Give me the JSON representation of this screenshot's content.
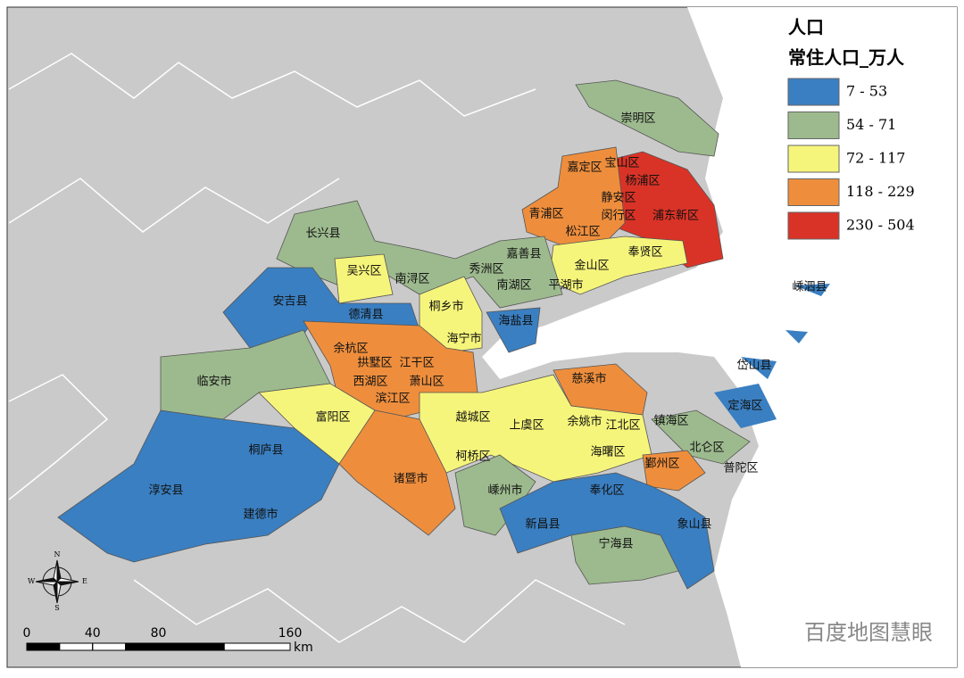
{
  "legend": {
    "title": "人口",
    "subtitle": "常住人口_万人",
    "classes": [
      {
        "label": "7 - 53",
        "color": "#3a7fc1"
      },
      {
        "label": "54 - 71",
        "color": "#9dba8e"
      },
      {
        "label": "72 - 117",
        "color": "#f6f57b"
      },
      {
        "label": "118 - 229",
        "color": "#ee8e3d"
      },
      {
        "label": "230 - 504",
        "color": "#d93327"
      }
    ]
  },
  "districts": [
    "崇明区",
    "嘉定区",
    "宝山区",
    "杨浦区",
    "静安区",
    "青浦区",
    "闵行区",
    "浦东新区",
    "松江区",
    "奉贤区",
    "长兴县",
    "嘉善县",
    "秀洲区",
    "吴兴区",
    "南浔区",
    "金山区",
    "南湖区",
    "平湖市",
    "安吉县",
    "桐乡市",
    "德清县",
    "海盐县",
    "海宁市",
    "余杭区",
    "拱墅区",
    "江干区",
    "西湖区",
    "萧山区",
    "滨江区",
    "临安市",
    "慈溪市",
    "富阳区",
    "越城区",
    "上虞区",
    "余姚市",
    "江北区",
    "镇海区",
    "北仑区",
    "柯桥区",
    "海曙区",
    "鄞州区",
    "普陀区",
    "桐庐县",
    "淳安县",
    "诸暨市",
    "嵊州市",
    "奉化区",
    "建德市",
    "新昌县",
    "象山县",
    "宁海县",
    "岱山县",
    "定海区",
    "嵊泗县"
  ],
  "compass": {
    "north": "N",
    "south": "S",
    "east": "E",
    "west": "W"
  },
  "scale_bar": {
    "ticks": [
      0,
      40,
      80,
      160
    ],
    "unit": "km"
  },
  "watermark": "百度地图慧眼"
}
